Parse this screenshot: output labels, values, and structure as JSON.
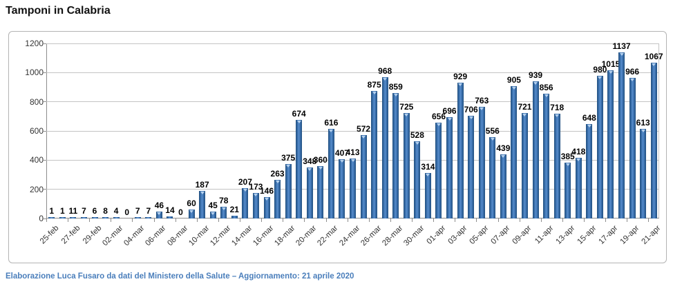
{
  "page": {
    "footer": "Elaborazione Luca Fusaro da dati del Ministero della Salute – Aggiornamento: 21 aprile 2020"
  },
  "colors": {
    "bar": "#3b6ea5",
    "bar_edge": "#1f4e79",
    "bar_highlight": "#5a8fd0",
    "footer_text": "#4a7ebb",
    "gridline": "#c3c3c3"
  },
  "chart_data": {
    "type": "bar",
    "title": "Tamponi in Calabria",
    "xlabel": "",
    "ylabel": "",
    "ylim": [
      0,
      1200
    ],
    "y_ticks": [
      0,
      200,
      400,
      600,
      800,
      1000,
      1200
    ],
    "grid": true,
    "legend": false,
    "data_labels": true,
    "x_label_step": 2,
    "x_tick_labels": [
      "25-feb",
      "27-feb",
      "29-feb",
      "02-mar",
      "04-mar",
      "06-mar",
      "08-mar",
      "10-mar",
      "12-mar",
      "14-mar",
      "16-mar",
      "18-mar",
      "20-mar",
      "22-mar",
      "24-mar",
      "26-mar",
      "28-mar",
      "30-mar",
      "01-apr",
      "03-apr",
      "05-apr",
      "07-apr",
      "09-apr",
      "11-apr",
      "13-apr",
      "15-apr",
      "17-apr",
      "19-apr",
      "21-apr"
    ],
    "values": [
      1,
      1,
      11,
      7,
      6,
      8,
      4,
      0,
      7,
      7,
      46,
      14,
      0,
      60,
      187,
      45,
      78,
      21,
      207,
      173,
      146,
      263,
      375,
      674,
      348,
      360,
      616,
      407,
      413,
      572,
      875,
      968,
      859,
      725,
      528,
      314,
      656,
      696,
      929,
      706,
      763,
      556,
      439,
      905,
      721,
      939,
      856,
      718,
      385,
      418,
      648,
      980,
      1015,
      1137,
      966,
      613,
      1067
    ]
  }
}
